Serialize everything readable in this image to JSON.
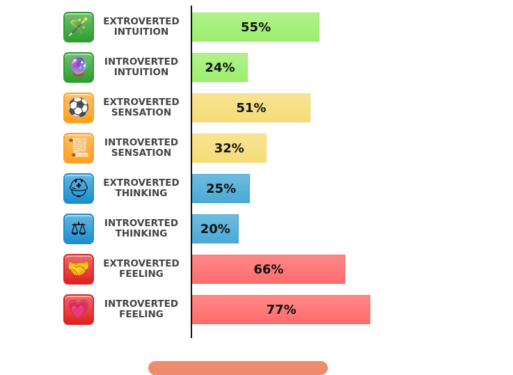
{
  "chart_data": {
    "type": "bar",
    "orientation": "horizontal",
    "categories": [
      "EXTROVERTED INTUITION",
      "INTROVERTED INTUITION",
      "EXTROVERTED SENSATION",
      "INTROVERTED SENSATION",
      "EXTROVERTED THINKING",
      "INTROVERTED THINKING",
      "EXTROVERTED FEELING",
      "INTROVERTED FEELING"
    ],
    "lines": [
      [
        "EXTROVERTED",
        "INTUITION"
      ],
      [
        "INTROVERTED",
        "INTUITION"
      ],
      [
        "EXTROVERTED",
        "SENSATION"
      ],
      [
        "INTROVERTED",
        "SENSATION"
      ],
      [
        "EXTROVERTED",
        "THINKING"
      ],
      [
        "INTROVERTED",
        "THINKING"
      ],
      [
        "EXTROVERTED",
        "FEELING"
      ],
      [
        "INTROVERTED",
        "FEELING"
      ]
    ],
    "values": [
      55,
      24,
      51,
      32,
      25,
      20,
      66,
      77
    ],
    "labels": [
      "55%",
      "24%",
      "51%",
      "32%",
      "25%",
      "20%",
      "66%",
      "77%"
    ],
    "colors": [
      "#9cef6e",
      "#9cef6e",
      "#f6dc78",
      "#f6dc78",
      "#4aaad6",
      "#4aaad6",
      "#ff6b6b",
      "#ff6b6b"
    ],
    "icons": [
      "magic-wand-icon",
      "crystal-ball-icon",
      "soccer-ball-icon",
      "stone-tablets-icon",
      "hard-hat-icon",
      "scales-icon",
      "handshake-icon",
      "heart-icon"
    ],
    "icon_glyphs": [
      "🪄",
      "🔮",
      "⚽",
      "📜",
      "⛑",
      "⚖",
      "🤝",
      "💗"
    ],
    "icon_bg": [
      "#2e9e2e",
      "#2e9e2e",
      "#ffa020",
      "#ffa020",
      "#1a8fd0",
      "#1a8fd0",
      "#e02020",
      "#e02020"
    ],
    "xlim": [
      0,
      100
    ],
    "grid": false
  }
}
